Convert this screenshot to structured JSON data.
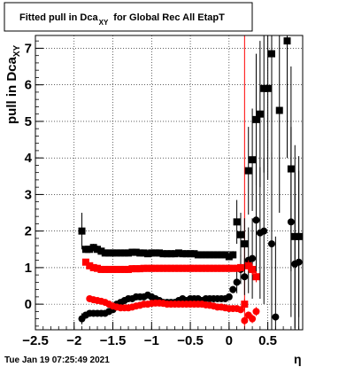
{
  "chart_data": {
    "type": "scatter",
    "title": "Fitted pull in Dca",
    "title_sub": "XY",
    "title_tail": "for Global Rec All EtapT",
    "ylabel": "pull in Dca",
    "ylabel_sub": "XY",
    "xlabel": "η",
    "timestamp": "Tue Jan 19 07:25:49 2021",
    "xlim": [
      -2.5,
      0.95
    ],
    "ylim": [
      -0.7,
      7.35
    ],
    "xticks": [
      -2.5,
      -2,
      -1.5,
      -1,
      -0.5,
      0,
      0.5
    ],
    "xtick_labels": [
      "−2.5",
      "−2",
      "−1.5",
      "−1",
      "−0.5",
      "0",
      "0.5"
    ],
    "yticks": [
      0,
      1,
      2,
      3,
      4,
      5,
      6,
      7
    ],
    "ytick_labels": [
      "0",
      "1",
      "2",
      "3",
      "4",
      "5",
      "6",
      "7"
    ],
    "grid": true,
    "vline_x": 0.2,
    "colors": {
      "black_series": "#000000",
      "red_series": "#ff0000",
      "vline": "#ff0000"
    },
    "series": [
      {
        "marker": "square",
        "color": "#000000",
        "x": [
          -1.9,
          -1.85,
          -1.8,
          -1.75,
          -1.7,
          -1.65,
          -1.6,
          -1.55,
          -1.5,
          -1.45,
          -1.4,
          -1.35,
          -1.3,
          -1.25,
          -1.2,
          -1.15,
          -1.1,
          -1.05,
          -1.0,
          -0.95,
          -0.9,
          -0.85,
          -0.8,
          -0.75,
          -0.7,
          -0.65,
          -0.6,
          -0.55,
          -0.5,
          -0.45,
          -0.4,
          -0.35,
          -0.3,
          -0.25,
          -0.2,
          -0.15,
          -0.1,
          -0.05,
          0.0,
          0.05,
          0.1,
          0.15,
          0.2,
          0.25,
          0.3,
          0.35,
          0.4,
          0.45,
          0.5,
          0.55,
          0.65,
          0.75,
          0.8,
          0.85,
          0.9
        ],
        "y": [
          2.0,
          1.5,
          1.5,
          1.55,
          1.5,
          1.45,
          1.4,
          1.4,
          1.4,
          1.4,
          1.4,
          1.4,
          1.4,
          1.42,
          1.42,
          1.4,
          1.4,
          1.38,
          1.4,
          1.4,
          1.4,
          1.38,
          1.38,
          1.38,
          1.38,
          1.4,
          1.38,
          1.38,
          1.38,
          1.38,
          1.35,
          1.35,
          1.35,
          1.35,
          1.35,
          1.35,
          1.35,
          1.35,
          1.3,
          1.35,
          2.25,
          1.9,
          1.65,
          3.65,
          3.95,
          5.05,
          5.2,
          5.9,
          5.9,
          6.85,
          5.3,
          7.2,
          3.7,
          1.85,
          1.85
        ],
        "err": [
          0.5,
          0.1,
          0.1,
          0.1,
          0.1,
          0.08,
          0.08,
          0.08,
          0.08,
          0.08,
          0.08,
          0.08,
          0.08,
          0.08,
          0.08,
          0.08,
          0.08,
          0.08,
          0.08,
          0.08,
          0.08,
          0.08,
          0.08,
          0.08,
          0.08,
          0.08,
          0.08,
          0.08,
          0.08,
          0.08,
          0.08,
          0.08,
          0.08,
          0.08,
          0.08,
          0.08,
          0.08,
          0.08,
          0.08,
          0.1,
          0.6,
          0.6,
          0.7,
          1.2,
          1.4,
          1.8,
          2.0,
          2.3,
          2.5,
          2.8,
          2.8,
          3.2,
          2.8,
          2.5,
          2.2
        ]
      },
      {
        "marker": "circle",
        "color": "#000000",
        "x": [
          -1.9,
          -1.85,
          -1.8,
          -1.75,
          -1.7,
          -1.65,
          -1.6,
          -1.55,
          -1.5,
          -1.45,
          -1.4,
          -1.35,
          -1.3,
          -1.25,
          -1.2,
          -1.15,
          -1.1,
          -1.05,
          -1.0,
          -0.95,
          -0.9,
          -0.85,
          -0.8,
          -0.75,
          -0.7,
          -0.65,
          -0.6,
          -0.55,
          -0.5,
          -0.45,
          -0.4,
          -0.35,
          -0.3,
          -0.25,
          -0.2,
          -0.15,
          -0.1,
          -0.05,
          0.0,
          0.05,
          0.1,
          0.15,
          0.2,
          0.25,
          0.3,
          0.35,
          0.4,
          0.45,
          0.55,
          0.6,
          0.8,
          0.85,
          0.9
        ],
        "y": [
          -0.4,
          -0.3,
          -0.25,
          -0.25,
          -0.25,
          -0.25,
          -0.25,
          -0.2,
          -0.15,
          0.0,
          0.05,
          0.1,
          0.15,
          0.15,
          0.2,
          0.2,
          0.2,
          0.25,
          0.2,
          0.15,
          0.1,
          0.05,
          0.05,
          0.05,
          0.05,
          0.1,
          0.15,
          0.1,
          0.15,
          0.15,
          0.15,
          0.1,
          0.15,
          0.15,
          0.15,
          0.15,
          0.15,
          0.15,
          0.2,
          0.4,
          0.6,
          0.95,
          0.75,
          1.2,
          1.25,
          2.3,
          1.95,
          2.0,
          1.65,
          -0.35,
          2.25,
          1.1,
          1.15
        ],
        "err": [
          0.15,
          0.08,
          0.08,
          0.08,
          0.06,
          0.06,
          0.06,
          0.06,
          0.06,
          0.06,
          0.06,
          0.06,
          0.06,
          0.06,
          0.06,
          0.06,
          0.06,
          0.06,
          0.06,
          0.06,
          0.06,
          0.06,
          0.06,
          0.06,
          0.06,
          0.06,
          0.06,
          0.06,
          0.06,
          0.06,
          0.06,
          0.06,
          0.06,
          0.06,
          0.06,
          0.06,
          0.06,
          0.06,
          0.06,
          0.1,
          0.3,
          0.4,
          0.5,
          0.9,
          1.1,
          1.6,
          1.8,
          2.0,
          2.5,
          2.2,
          2.6,
          2.5,
          2.5
        ]
      },
      {
        "marker": "square",
        "color": "#ff0000",
        "x": [
          -1.85,
          -1.8,
          -1.75,
          -1.7,
          -1.65,
          -1.6,
          -1.55,
          -1.5,
          -1.45,
          -1.4,
          -1.35,
          -1.3,
          -1.25,
          -1.2,
          -1.15,
          -1.1,
          -1.05,
          -1.0,
          -0.95,
          -0.9,
          -0.85,
          -0.8,
          -0.75,
          -0.7,
          -0.65,
          -0.6,
          -0.55,
          -0.5,
          -0.45,
          -0.4,
          -0.35,
          -0.3,
          -0.25,
          -0.2,
          -0.15,
          -0.1,
          -0.05,
          0.0,
          0.05,
          0.1,
          0.15,
          0.2,
          0.25,
          0.3,
          0.35
        ],
        "y": [
          1.15,
          1.05,
          1.0,
          0.98,
          0.95,
          0.95,
          0.95,
          0.95,
          0.95,
          0.95,
          0.95,
          0.95,
          0.97,
          0.97,
          0.97,
          0.98,
          0.98,
          0.98,
          0.98,
          0.98,
          0.98,
          0.98,
          0.98,
          0.98,
          0.98,
          0.98,
          0.98,
          0.98,
          0.98,
          0.98,
          0.98,
          0.98,
          0.98,
          0.98,
          0.98,
          0.98,
          0.98,
          0.98,
          0.98,
          0.98,
          1.0,
          0.0,
          1.05,
          0.95,
          0.75
        ],
        "err": [
          0.05,
          0.05,
          0.04,
          0.04,
          0.04,
          0.04,
          0.04,
          0.04,
          0.04,
          0.04,
          0.04,
          0.04,
          0.04,
          0.04,
          0.04,
          0.04,
          0.04,
          0.04,
          0.04,
          0.04,
          0.04,
          0.04,
          0.04,
          0.04,
          0.04,
          0.04,
          0.04,
          0.04,
          0.04,
          0.04,
          0.04,
          0.04,
          0.04,
          0.04,
          0.04,
          0.04,
          0.04,
          0.04,
          0.05,
          0.06,
          0.08,
          0.15,
          0.15,
          0.15,
          0.15
        ]
      },
      {
        "marker": "circle",
        "color": "#ff0000",
        "x": [
          -1.8,
          -1.75,
          -1.7,
          -1.65,
          -1.6,
          -1.55,
          -1.5,
          -1.45,
          -1.4,
          -1.35,
          -1.3,
          -1.25,
          -1.2,
          -1.15,
          -1.1,
          -1.05,
          -1.0,
          -0.95,
          -0.9,
          -0.85,
          -0.8,
          -0.75,
          -0.7,
          -0.65,
          -0.6,
          -0.55,
          -0.5,
          -0.45,
          -0.4,
          -0.35,
          -0.3,
          -0.25,
          -0.2,
          -0.15,
          -0.1,
          -0.05,
          0.0,
          0.05,
          0.1,
          0.15,
          0.2,
          0.25,
          0.3,
          0.35
        ],
        "y": [
          0.15,
          0.12,
          0.1,
          0.08,
          0.05,
          0.0,
          -0.05,
          -0.08,
          -0.1,
          -0.1,
          -0.1,
          -0.08,
          -0.05,
          -0.03,
          0.0,
          0.0,
          0.02,
          0.03,
          0.03,
          0.02,
          0.0,
          0.0,
          0.0,
          0.0,
          0.0,
          0.0,
          0.0,
          0.0,
          0.0,
          0.0,
          -0.02,
          -0.03,
          -0.05,
          -0.08,
          -0.08,
          -0.1,
          -0.12,
          -0.12,
          -0.12,
          -0.15,
          -0.45,
          -0.3,
          -0.4,
          -0.2
        ],
        "err": [
          0.04,
          0.04,
          0.04,
          0.04,
          0.04,
          0.04,
          0.04,
          0.04,
          0.04,
          0.04,
          0.04,
          0.04,
          0.04,
          0.04,
          0.04,
          0.04,
          0.04,
          0.04,
          0.04,
          0.04,
          0.04,
          0.04,
          0.04,
          0.04,
          0.04,
          0.04,
          0.04,
          0.04,
          0.04,
          0.04,
          0.04,
          0.04,
          0.04,
          0.04,
          0.04,
          0.04,
          0.04,
          0.04,
          0.05,
          0.06,
          0.1,
          0.1,
          0.12,
          0.12
        ]
      }
    ]
  }
}
